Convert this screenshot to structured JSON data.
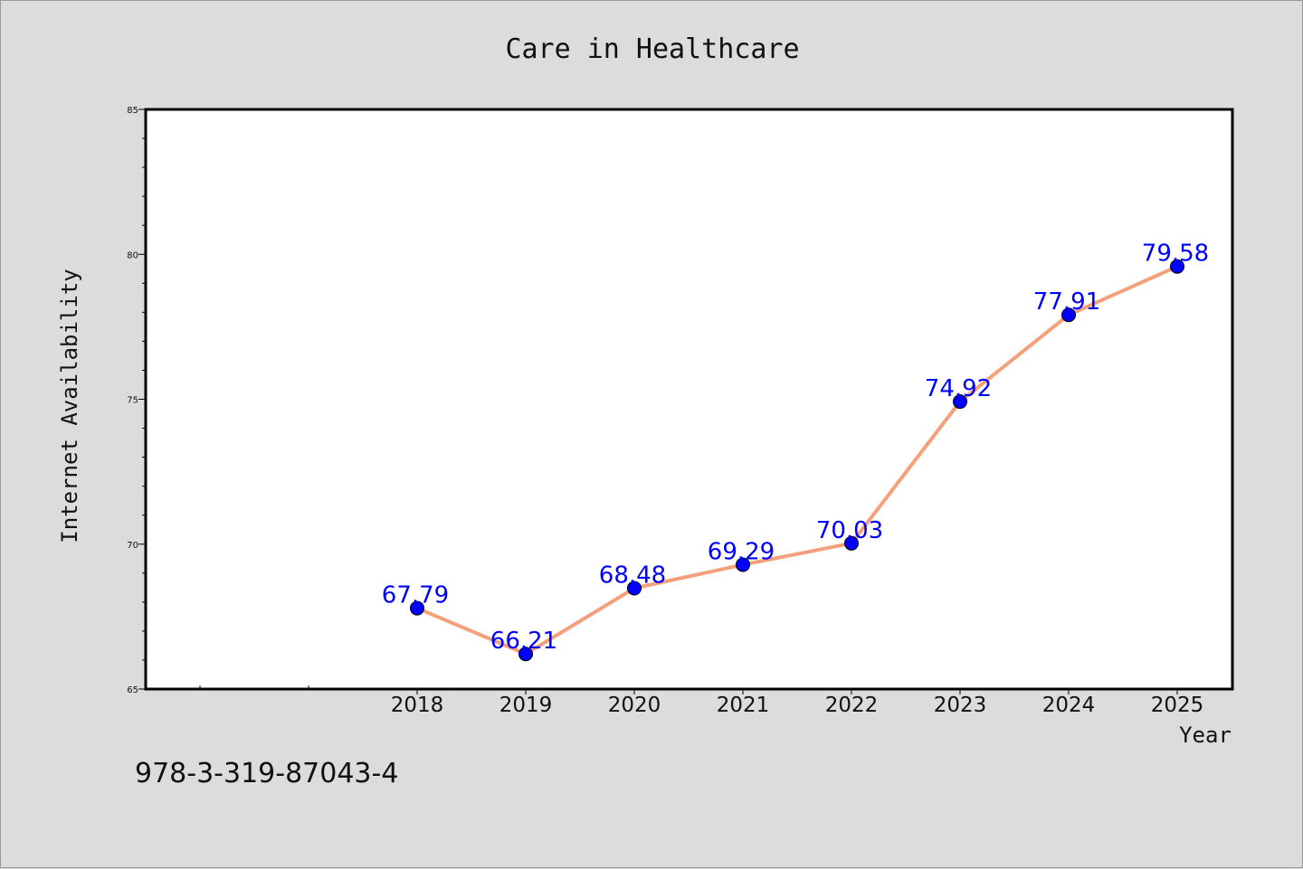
{
  "chart_data": {
    "type": "line",
    "title": "Care in Healthcare",
    "xlabel": "Year",
    "ylabel": "Internet Availability",
    "categories": [
      "2018",
      "2019",
      "2020",
      "2021",
      "2022",
      "2023",
      "2024",
      "2025"
    ],
    "series": [
      {
        "values": [
          67.79,
          66.21,
          68.48,
          69.29,
          70.03,
          74.92,
          77.91,
          79.58
        ]
      }
    ],
    "data_labels": [
      "67.79",
      "66.21",
      "68.48",
      "69.29",
      "70.03",
      "74.92",
      "77.91",
      "79.58"
    ],
    "ylim": [
      65,
      85
    ],
    "y_ticks": [
      "65",
      "70",
      "75",
      "80",
      "85"
    ],
    "grid": false,
    "legend": "none",
    "colors": {
      "line": "#f4a07a",
      "marker": "#0000ff",
      "label": "#0000ff",
      "background": "#dcdcdc",
      "plot_background": "#ffffff"
    }
  },
  "footnote": "978-3-319-87043-4"
}
